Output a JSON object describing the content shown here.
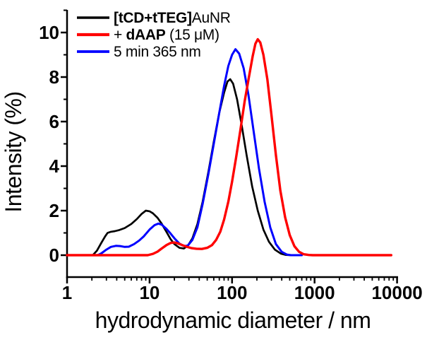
{
  "figure": {
    "background": "#ffffff",
    "axis_color": "#000000",
    "text_color": "#000000"
  },
  "chart_data": {
    "type": "line",
    "title": "",
    "xlabel": "hydrodynamic diameter / nm",
    "ylabel": "Intensity (%)",
    "x_scale": "log",
    "y_scale": "linear",
    "xlim": [
      1,
      10000
    ],
    "ylim": [
      -1,
      11
    ],
    "x_ticks": [
      1,
      10,
      100,
      1000,
      10000
    ],
    "y_ticks": [
      0,
      2,
      4,
      6,
      8,
      10
    ],
    "y_minor_ticks": [
      1,
      3,
      5,
      7,
      9,
      11
    ],
    "grid": false,
    "legend_position": "top-left",
    "series": [
      {
        "name": "[tCD+tTEG]AuNR",
        "color": "#000000",
        "label_parts": [
          {
            "t": "[tCD+tTEG]",
            "b": true
          },
          {
            "t": "AuNR",
            "b": false
          }
        ],
        "peaks_nm": [
          9,
          95
        ],
        "peak_intensities": [
          2.0,
          7.9
        ],
        "points": [
          [
            1,
            0
          ],
          [
            2.05,
            0
          ],
          [
            2.3,
            0.2
          ],
          [
            2.6,
            0.55
          ],
          [
            2.9,
            0.85
          ],
          [
            3.1,
            1.0
          ],
          [
            3.4,
            1.05
          ],
          [
            3.8,
            1.08
          ],
          [
            4.3,
            1.13
          ],
          [
            5,
            1.22
          ],
          [
            6,
            1.4
          ],
          [
            7,
            1.62
          ],
          [
            8,
            1.85
          ],
          [
            9,
            2.0
          ],
          [
            10,
            1.97
          ],
          [
            11,
            1.88
          ],
          [
            12.5,
            1.68
          ],
          [
            14,
            1.42
          ],
          [
            16,
            1.05
          ],
          [
            18,
            0.72
          ],
          [
            20,
            0.5
          ],
          [
            23,
            0.33
          ],
          [
            26,
            0.3
          ],
          [
            29,
            0.42
          ],
          [
            33,
            0.75
          ],
          [
            38,
            1.4
          ],
          [
            44,
            2.4
          ],
          [
            52,
            3.8
          ],
          [
            60,
            5.1
          ],
          [
            70,
            6.4
          ],
          [
            80,
            7.3
          ],
          [
            88,
            7.8
          ],
          [
            95,
            7.9
          ],
          [
            103,
            7.7
          ],
          [
            115,
            7.0
          ],
          [
            130,
            5.9
          ],
          [
            150,
            4.5
          ],
          [
            175,
            3.1
          ],
          [
            205,
            2.0
          ],
          [
            240,
            1.15
          ],
          [
            280,
            0.6
          ],
          [
            330,
            0.25
          ],
          [
            390,
            0.07
          ],
          [
            450,
            0.01
          ],
          [
            520,
            0
          ],
          [
            700,
            0
          ]
        ]
      },
      {
        "name": "+ dAAP (15 μM)",
        "color": "#ff0000",
        "label_parts": [
          {
            "t": "+ ",
            "b": false
          },
          {
            "t": "dAAP",
            "b": true
          },
          {
            "t": " (15 μM)",
            "b": false
          }
        ],
        "peaks_nm": [
          20,
          205
        ],
        "peak_intensities": [
          0.57,
          9.7
        ],
        "points": [
          [
            1,
            0
          ],
          [
            9.5,
            0
          ],
          [
            11,
            0.06
          ],
          [
            12.5,
            0.16
          ],
          [
            14,
            0.3
          ],
          [
            16,
            0.45
          ],
          [
            18,
            0.55
          ],
          [
            20,
            0.57
          ],
          [
            22,
            0.53
          ],
          [
            25,
            0.45
          ],
          [
            28,
            0.38
          ],
          [
            32,
            0.32
          ],
          [
            37,
            0.29
          ],
          [
            43,
            0.28
          ],
          [
            50,
            0.33
          ],
          [
            57,
            0.45
          ],
          [
            64,
            0.68
          ],
          [
            72,
            1.05
          ],
          [
            80,
            1.6
          ],
          [
            90,
            2.4
          ],
          [
            100,
            3.3
          ],
          [
            112,
            4.4
          ],
          [
            126,
            5.6
          ],
          [
            142,
            6.9
          ],
          [
            160,
            8.0
          ],
          [
            178,
            8.95
          ],
          [
            192,
            9.5
          ],
          [
            205,
            9.7
          ],
          [
            220,
            9.55
          ],
          [
            240,
            9.0
          ],
          [
            268,
            7.9
          ],
          [
            300,
            6.3
          ],
          [
            340,
            4.5
          ],
          [
            385,
            2.9
          ],
          [
            440,
            1.7
          ],
          [
            500,
            0.9
          ],
          [
            570,
            0.4
          ],
          [
            650,
            0.15
          ],
          [
            740,
            0.04
          ],
          [
            850,
            0.01
          ],
          [
            950,
            0
          ],
          [
            8500,
            0
          ]
        ]
      },
      {
        "name": "5 min 365 nm",
        "color": "#0000ff",
        "label_parts": [
          {
            "t": "5 min 365 nm",
            "b": false
          }
        ],
        "peaks_nm": [
          12.8,
          110
        ],
        "peak_intensities": [
          1.42,
          9.25
        ],
        "points": [
          [
            1,
            0
          ],
          [
            2.35,
            0
          ],
          [
            2.6,
            0.08
          ],
          [
            3,
            0.25
          ],
          [
            3.4,
            0.37
          ],
          [
            3.9,
            0.42
          ],
          [
            4.4,
            0.41
          ],
          [
            5,
            0.37
          ],
          [
            5.6,
            0.38
          ],
          [
            6.5,
            0.5
          ],
          [
            7.5,
            0.66
          ],
          [
            8.5,
            0.84
          ],
          [
            10,
            1.15
          ],
          [
            11.5,
            1.35
          ],
          [
            12.8,
            1.42
          ],
          [
            14,
            1.37
          ],
          [
            16,
            1.18
          ],
          [
            18,
            0.97
          ],
          [
            20,
            0.76
          ],
          [
            23,
            0.52
          ],
          [
            26,
            0.41
          ],
          [
            29,
            0.43
          ],
          [
            33,
            0.68
          ],
          [
            38,
            1.25
          ],
          [
            44,
            2.3
          ],
          [
            52,
            3.7
          ],
          [
            60,
            5.0
          ],
          [
            70,
            6.4
          ],
          [
            80,
            7.6
          ],
          [
            90,
            8.5
          ],
          [
            100,
            9.0
          ],
          [
            110,
            9.25
          ],
          [
            122,
            9.05
          ],
          [
            138,
            8.4
          ],
          [
            158,
            7.2
          ],
          [
            182,
            5.6
          ],
          [
            212,
            3.9
          ],
          [
            248,
            2.4
          ],
          [
            290,
            1.25
          ],
          [
            340,
            0.5
          ],
          [
            400,
            0.15
          ],
          [
            460,
            0.03
          ],
          [
            520,
            0
          ],
          [
            700,
            0
          ]
        ]
      }
    ]
  }
}
